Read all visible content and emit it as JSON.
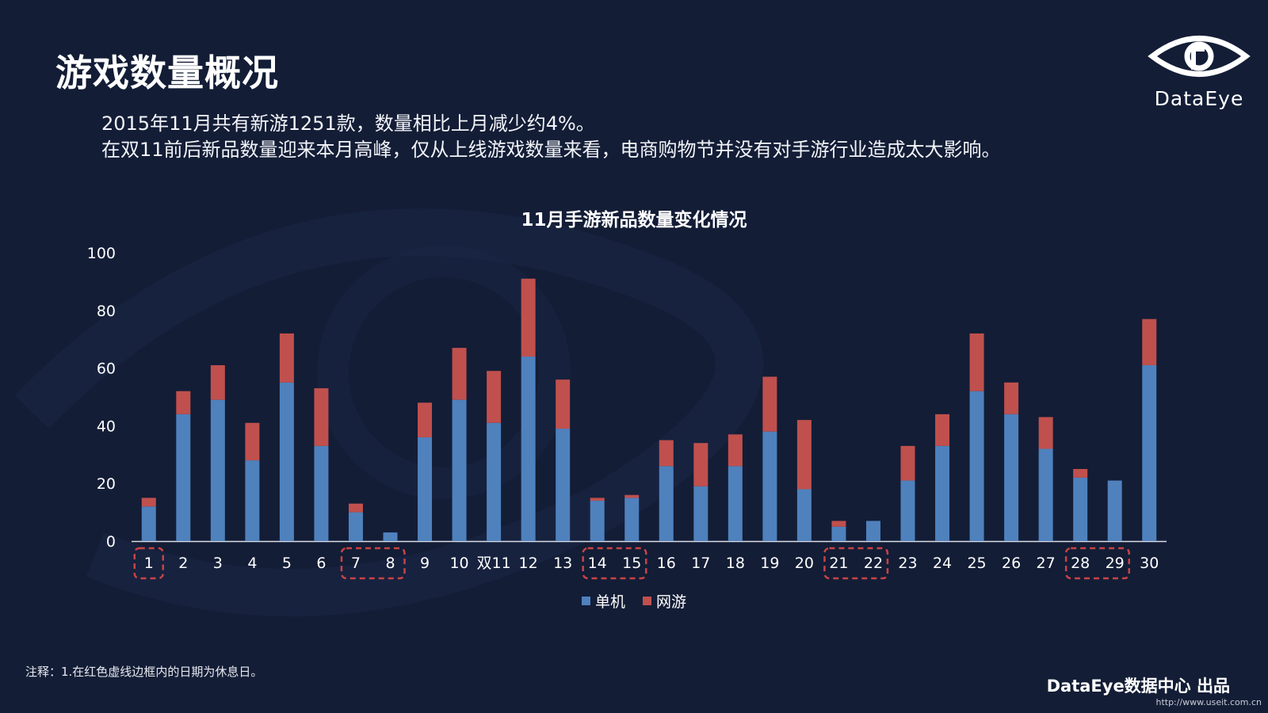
{
  "header": {
    "title": "游戏数量概况",
    "lines": [
      "2015年11月共有新游1251款，数量相比上月减少约4%。",
      "在双11前后新品数量迎来本月高峰，仅从上线游戏数量来看，电商购物节并没有对手游行业造成太大影响。"
    ]
  },
  "logo": {
    "text": "DataEye",
    "icon": "eye-logo-icon"
  },
  "chart_data": {
    "type": "bar",
    "stacked": true,
    "title": "11月手游新品数量变化情况",
    "categories": [
      "1",
      "2",
      "3",
      "4",
      "5",
      "6",
      "7",
      "8",
      "9",
      "10",
      "双11",
      "12",
      "13",
      "14",
      "15",
      "16",
      "17",
      "18",
      "19",
      "20",
      "21",
      "22",
      "23",
      "24",
      "25",
      "26",
      "27",
      "28",
      "29",
      "30"
    ],
    "series": [
      {
        "name": "单机",
        "color": "#4f81bd",
        "values": [
          12,
          44,
          49,
          28,
          55,
          33,
          10,
          3,
          36,
          49,
          41,
          64,
          39,
          14,
          15,
          26,
          19,
          26,
          38,
          18,
          5,
          7,
          21,
          33,
          52,
          44,
          32,
          22,
          21,
          61
        ]
      },
      {
        "name": "网游",
        "color": "#c0504d",
        "values": [
          3,
          8,
          12,
          13,
          17,
          20,
          3,
          0,
          12,
          18,
          18,
          27,
          17,
          1,
          1,
          9,
          15,
          11,
          19,
          24,
          2,
          0,
          12,
          11,
          20,
          11,
          11,
          3,
          0,
          16
        ]
      }
    ],
    "yticks": [
      0,
      20,
      40,
      60,
      80,
      100
    ],
    "ylim": [
      0,
      100
    ],
    "grid": false,
    "legend": "bottom",
    "highlight_groups": [
      [
        "1"
      ],
      [
        "7",
        "8"
      ],
      [
        "14",
        "15"
      ],
      [
        "21",
        "22"
      ],
      [
        "28",
        "29"
      ]
    ],
    "highlight_color": "#c94346"
  },
  "footer": {
    "note": "注释：1.在红色虚线边框内的日期为休息日。",
    "credit": "DataEye数据中心 出品",
    "watermark": "http://www.useit.com.cn"
  }
}
